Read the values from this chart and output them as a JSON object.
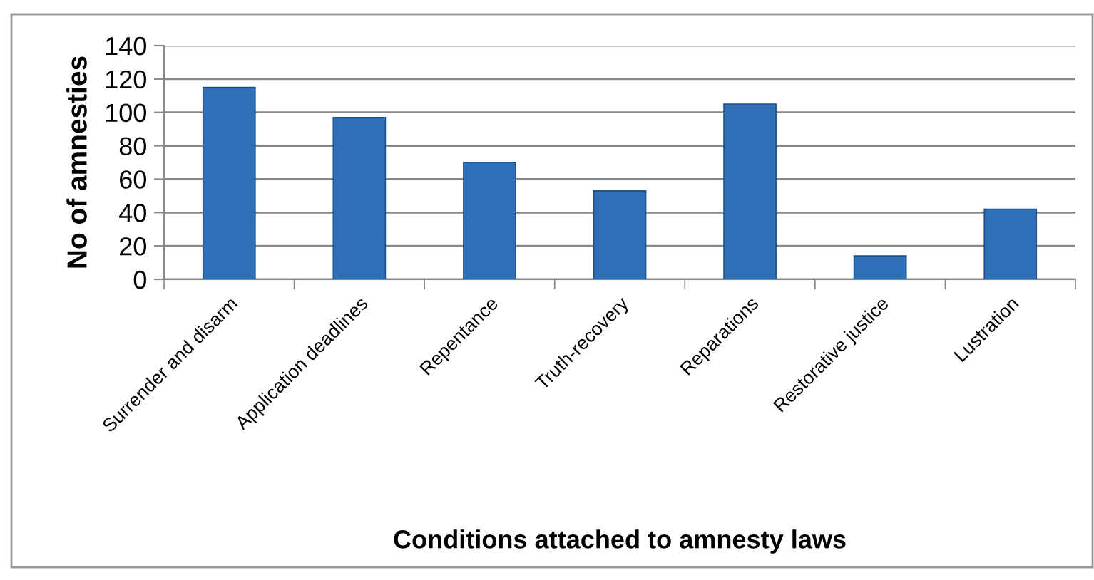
{
  "chart_data": {
    "type": "bar",
    "xlabel": "Conditions attached to amnesty laws",
    "ylabel": "No of amnesties",
    "categories": [
      "Surrender and disarm",
      "Application deadlines",
      "Repentance",
      "Truth-recovery",
      "Reparations",
      "Restorative justice",
      "Lustration"
    ],
    "values": [
      115,
      97,
      70,
      53,
      105,
      14,
      42
    ],
    "color": "#2e6fb7",
    "ylim": [
      0,
      140
    ],
    "yticks": [
      0,
      20,
      40,
      60,
      80,
      100,
      120,
      140
    ],
    "grid": "y"
  }
}
